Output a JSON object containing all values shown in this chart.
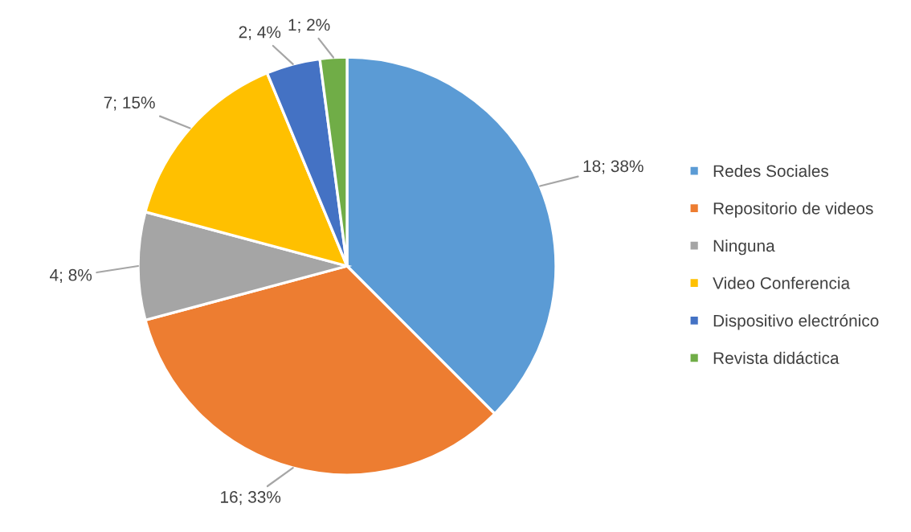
{
  "chart_data": {
    "type": "pie",
    "categories": [
      "Redes Sociales",
      "Repositorio de videos",
      "Ninguna",
      "Video Conferencia",
      "Dispositivo electrónico",
      "Revista didáctica"
    ],
    "values": [
      18,
      16,
      4,
      7,
      2,
      1
    ],
    "colors": [
      "#5b9bd5",
      "#ed7d31",
      "#a5a5a5",
      "#ffc000",
      "#4472c4",
      "#70ad47"
    ],
    "value_labels": [
      "18; 38%",
      "16; 33%",
      "4; 8%",
      "7; 15%",
      "2; 4%",
      "1; 2%"
    ],
    "legend": "right"
  }
}
